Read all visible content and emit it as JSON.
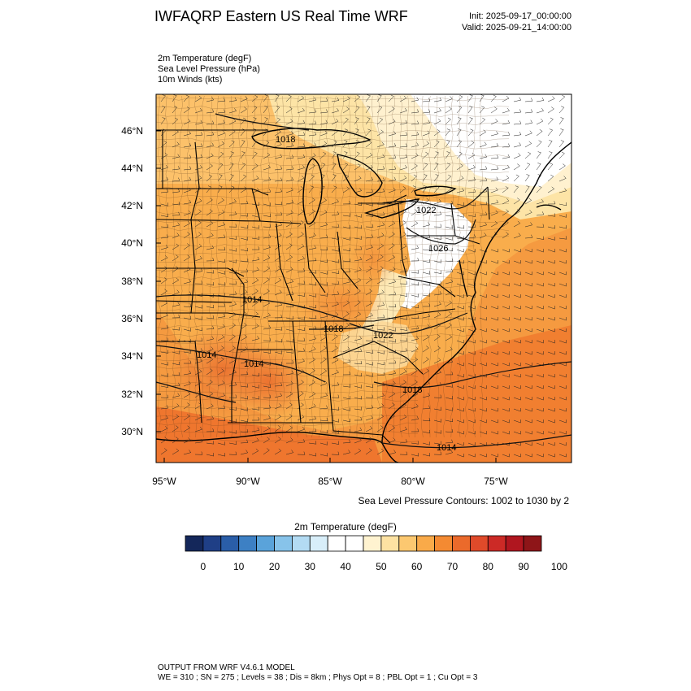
{
  "header": {
    "title": "IWFAQRP Eastern US Real Time WRF",
    "init": "Init: 2025-09-17_00:00:00",
    "valid": "Valid: 2025-09-21_14:00:00"
  },
  "variables": [
    "2m Temperature   (degF)",
    "Sea Level Pressure   (hPa)",
    "10m Winds   (kts)"
  ],
  "map": {
    "lat_labels": [
      "46°N",
      "44°N",
      "42°N",
      "40°N",
      "38°N",
      "36°N",
      "34°N",
      "32°N",
      "30°N"
    ],
    "lon_labels": [
      "95°W",
      "90°W",
      "85°W",
      "80°W",
      "75°W"
    ],
    "pressure_labels": [
      "1018",
      "1022",
      "1026",
      "1014",
      "1018",
      "1022",
      "1014",
      "1014",
      "1018",
      "1014"
    ],
    "contour_note": "Sea Level Pressure Contours: 1002 to 1030 by 2"
  },
  "colorbar": {
    "title": "2m Temperature  (degF)",
    "labels": [
      "0",
      "10",
      "20",
      "30",
      "40",
      "50",
      "60",
      "70",
      "80",
      "90",
      "100"
    ],
    "colors": [
      "#14275a",
      "#1f3f86",
      "#2a5ea8",
      "#3d80c4",
      "#5aa3da",
      "#87c3ea",
      "#b3dbf3",
      "#d8eef9",
      "#ffffff",
      "#ffffff",
      "#fff3d0",
      "#fde2a2",
      "#fcc870",
      "#f9aa49",
      "#f48a32",
      "#eb6a2b",
      "#e04a2a",
      "#cc2a26",
      "#b0161f",
      "#8e1518"
    ]
  },
  "footer": {
    "line1": "OUTPUT FROM WRF V4.6.1 MODEL",
    "line2": "WE = 310 ; SN = 275 ; Levels = 38 ; Dis = 8km ; Phys Opt = 8 ; PBL Opt = 1 ; Cu Opt = 3"
  }
}
